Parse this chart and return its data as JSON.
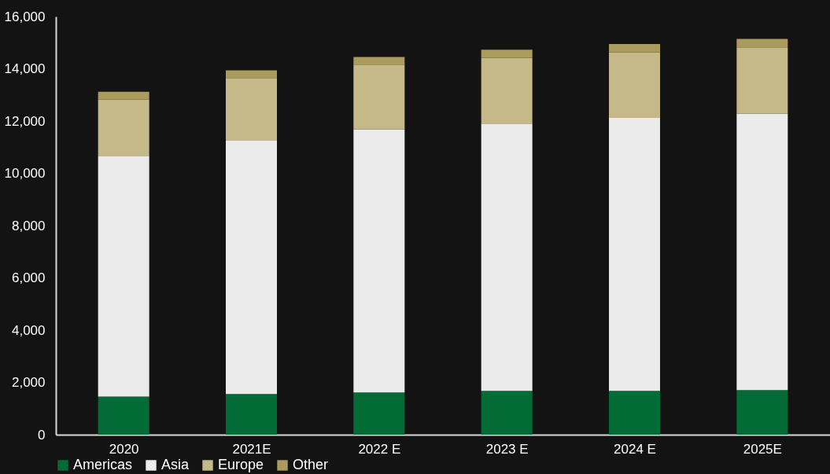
{
  "chart_data": {
    "type": "bar",
    "stacked": true,
    "categories": [
      "2020",
      "2021E",
      "2022 E",
      "2023 E",
      "2024 E",
      "2025E"
    ],
    "series": [
      {
        "name": "Americas",
        "color": "#036b35",
        "values": [
          1460,
          1560,
          1620,
          1680,
          1680,
          1710
        ]
      },
      {
        "name": "Asia",
        "color": "#ebebeb",
        "values": [
          9210,
          9710,
          10060,
          10220,
          10440,
          10570
        ]
      },
      {
        "name": "Europe",
        "color": "#c5b98a",
        "values": [
          2160,
          2380,
          2480,
          2510,
          2510,
          2540
        ]
      },
      {
        "name": "Other",
        "color": "#ab9b5c",
        "values": [
          290,
          290,
          290,
          320,
          320,
          320
        ]
      }
    ],
    "ylim": [
      0,
      16000
    ],
    "yticks": [
      0,
      {
        "value": 2000,
        "label": "2,000"
      },
      {
        "value": 4000,
        "label": "4,000"
      },
      {
        "value": 6000,
        "label": "6,000"
      },
      {
        "value": 8000,
        "label": "8,000"
      },
      {
        "value": 10000,
        "label": "10,000"
      },
      {
        "value": 12000,
        "label": "12,000"
      },
      {
        "value": 14000,
        "label": "14,000"
      },
      {
        "value": 16000,
        "label": "16,000"
      }
    ],
    "grid": false,
    "legend": "bottom"
  }
}
